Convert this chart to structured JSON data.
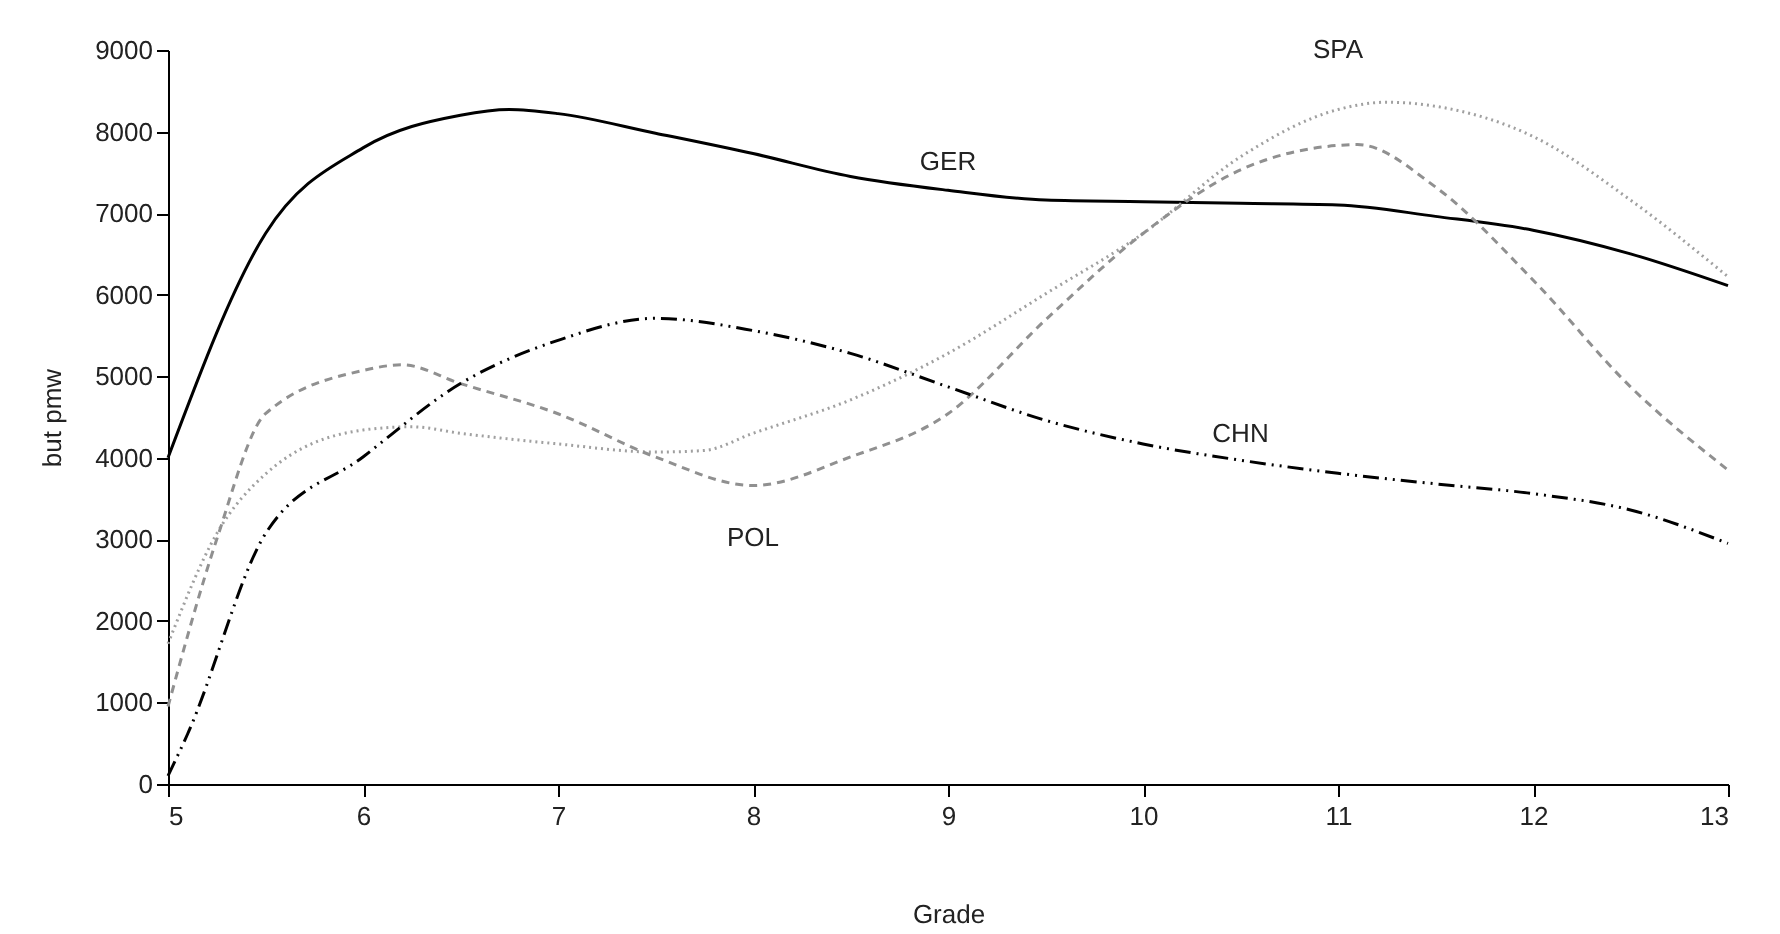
{
  "chart_data": {
    "type": "line",
    "xlabel": "Grade",
    "ylabel": "but pmw",
    "xlim": [
      5,
      13
    ],
    "xticks": [
      5,
      6,
      7,
      8,
      9,
      10,
      11,
      12,
      13
    ],
    "ylim": [
      0,
      9000
    ],
    "yticks": [
      0,
      1000,
      2000,
      3000,
      4000,
      5000,
      6000,
      7000,
      8000,
      9000
    ],
    "grid": false,
    "legend": false,
    "series": [
      {
        "name": "GER",
        "color": "#000000",
        "line_style": "solid",
        "x": [
          5,
          5.5,
          6,
          6.5,
          6.75,
          7,
          7.5,
          8,
          8.5,
          9,
          9.5,
          10,
          10.5,
          11,
          11.5,
          12,
          12.5,
          13
        ],
        "values": [
          4000,
          6750,
          7800,
          8200,
          8270,
          8220,
          7980,
          7730,
          7450,
          7280,
          7160,
          7140,
          7120,
          7100,
          6960,
          6790,
          6500,
          6110
        ]
      },
      {
        "name": "SPA",
        "color": "#a0a0a0",
        "line_style": "dotted",
        "x": [
          5,
          5.25,
          5.5,
          6,
          6.25,
          6.5,
          7,
          7.5,
          7.75,
          8,
          8.5,
          9,
          9.5,
          10,
          10.5,
          11,
          11.25,
          11.5,
          12,
          12.5,
          13
        ],
        "values": [
          1720,
          3070,
          3800,
          4340,
          4380,
          4300,
          4170,
          4070,
          4090,
          4300,
          4710,
          5280,
          6010,
          6750,
          7690,
          8270,
          8360,
          8310,
          7940,
          7160,
          6220
        ]
      },
      {
        "name": "POL",
        "color": "#909090",
        "line_style": "dashed",
        "x": [
          5,
          5.25,
          5.5,
          6,
          6.2,
          6.5,
          7,
          7.5,
          8,
          8.5,
          9,
          9.5,
          10,
          10.5,
          11,
          11.1,
          11.5,
          12,
          12.5,
          13
        ],
        "values": [
          950,
          3000,
          4540,
          5070,
          5140,
          4910,
          4540,
          4010,
          3660,
          4010,
          4540,
          5690,
          6750,
          7530,
          7830,
          7840,
          7320,
          6180,
          4870,
          3850
        ]
      },
      {
        "name": "CHN",
        "color": "#000000",
        "line_style": "dashdot",
        "x": [
          5,
          5.1,
          5.5,
          6,
          6.5,
          7,
          7.5,
          8,
          8.5,
          9,
          9.5,
          10,
          10.5,
          11,
          11.5,
          12,
          12.5,
          13
        ],
        "values": [
          100,
          610,
          3070,
          4010,
          4910,
          5440,
          5710,
          5560,
          5280,
          4870,
          4460,
          4170,
          3970,
          3810,
          3680,
          3560,
          3360,
          2950
        ]
      }
    ]
  }
}
